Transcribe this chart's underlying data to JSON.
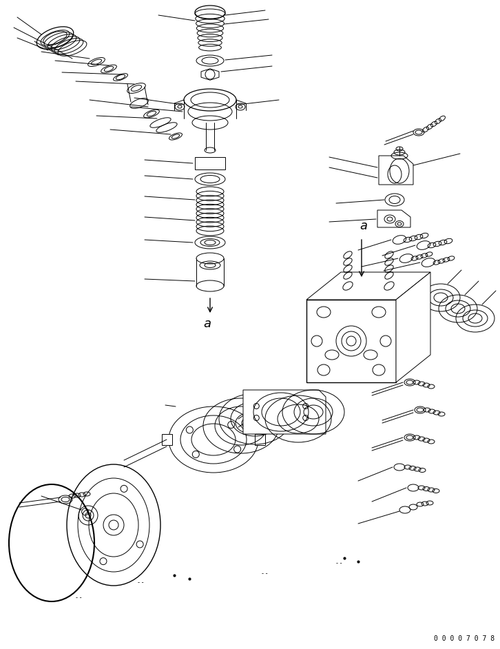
{
  "background_color": "#ffffff",
  "line_color": "#000000",
  "doc_number": "0 0 0 0 7 0 7 8",
  "figsize": [
    7.26,
    9.42
  ],
  "dpi": 100
}
